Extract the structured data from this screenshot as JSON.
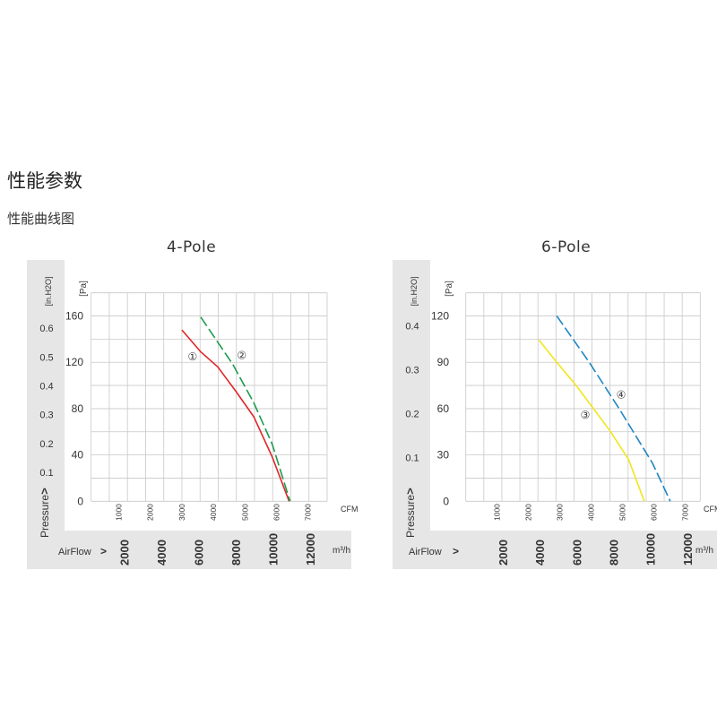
{
  "page": {
    "heading": "性能参数",
    "subheading": "性能曲线图"
  },
  "chart_data": [
    {
      "type": "line",
      "title": "4-Pole",
      "ylabel": "Pressure",
      "y_unit_left": "[in.H2O]",
      "y_unit_right": "[Pa]",
      "x_unit_top": "CFM",
      "x_label_bottom": "AirFlow",
      "x_unit_bottom": "m³/h",
      "ylim_pa": [
        0,
        180
      ],
      "xlim_cfm": [
        0,
        7500
      ],
      "pa_ticks": [
        0,
        40,
        80,
        120,
        160
      ],
      "inh2o_ticks": [
        "0.1",
        "0.2",
        "0.3",
        "0.4",
        "0.5",
        "0.6"
      ],
      "cfm_ticks": [
        1000,
        2000,
        3000,
        4000,
        5000,
        6000,
        7000
      ],
      "m3h_ticks": [
        2000,
        4000,
        6000,
        8000,
        10000,
        12000
      ],
      "grid": true,
      "series": [
        {
          "name": "①",
          "color": "#e0262a",
          "dashed": false,
          "label_at": [
            3340,
            125
          ],
          "x": [
            3000,
            3600,
            4140,
            4710,
            5280,
            5870,
            6400
          ],
          "y": [
            148,
            129,
            116,
            95,
            73,
            38,
            0
          ]
        },
        {
          "name": "②",
          "color": "#1e9a4e",
          "dashed": true,
          "label_at": [
            4900,
            126
          ],
          "x": [
            3600,
            4620,
            5280,
            5870,
            6430
          ],
          "y": [
            159,
            118,
            85,
            49,
            0
          ]
        }
      ]
    },
    {
      "type": "line",
      "title": "6-Pole",
      "ylabel": "Pressure",
      "y_unit_left": "[in.H2O]",
      "y_unit_right": "[Pa]",
      "x_unit_top": "CFM",
      "x_label_bottom": "AirFlow",
      "x_unit_bottom": "m³/h",
      "ylim_pa": [
        0,
        135
      ],
      "xlim_cfm": [
        0,
        7500
      ],
      "pa_ticks": [
        0,
        30,
        60,
        90,
        120
      ],
      "inh2o_ticks": [
        "0.1",
        "0.2",
        "0.3",
        "0.4"
      ],
      "cfm_ticks": [
        1000,
        2000,
        3000,
        4000,
        5000,
        6000,
        7000
      ],
      "m3h_ticks": [
        2000,
        4000,
        6000,
        8000,
        10000,
        12000
      ],
      "grid": true,
      "series": [
        {
          "name": "③",
          "color": "#f2e51e",
          "dashed": false,
          "label_at": [
            3810,
            56
          ],
          "x": [
            2330,
            2900,
            3480,
            4050,
            4620,
            5190,
            5690
          ],
          "y": [
            104.5,
            90,
            76,
            60.6,
            45,
            27,
            0
          ]
        },
        {
          "name": "④",
          "color": "#1f86c2",
          "dashed": true,
          "label_at": [
            4950,
            69
          ],
          "x": [
            2900,
            3950,
            4900,
            5950,
            6520
          ],
          "y": [
            120,
            89.6,
            59.6,
            24.8,
            0
          ]
        }
      ]
    }
  ]
}
